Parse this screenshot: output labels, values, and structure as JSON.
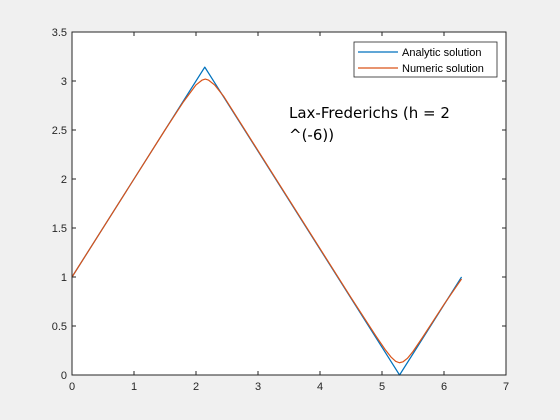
{
  "chart_data": {
    "type": "line",
    "title": "",
    "xlabel": "",
    "ylabel": "",
    "xlim": [
      0,
      7
    ],
    "ylim": [
      0,
      3.5
    ],
    "xticks": [
      0,
      1,
      2,
      3,
      4,
      5,
      6,
      7
    ],
    "yticks": [
      0,
      0.5,
      1,
      1.5,
      2,
      2.5,
      3,
      3.5
    ],
    "xtick_labels": [
      "0",
      "1",
      "2",
      "3",
      "4",
      "5",
      "6",
      "7"
    ],
    "ytick_labels": [
      "0",
      "0.5",
      "1",
      "1.5",
      "2",
      "2.5",
      "3",
      "3.5"
    ],
    "grid": false,
    "legend_position": "top-right",
    "series": [
      {
        "name": "Analytic solution",
        "color": "#0072BD",
        "x": [
          0,
          2.1416,
          5.2832,
          6.2832
        ],
        "y": [
          1,
          3.1416,
          0,
          1
        ]
      },
      {
        "name": "Numeric solution",
        "color": "#D95319",
        "x": [
          0,
          1.5,
          1.8,
          2.0,
          2.1,
          2.15,
          2.2,
          2.3,
          2.45,
          2.7,
          3.5,
          4.5,
          4.9,
          5.05,
          5.15,
          5.22,
          5.28,
          5.34,
          5.41,
          5.5,
          5.65,
          6.0,
          6.2832
        ],
        "y": [
          1,
          2.5,
          2.79,
          2.96,
          3.01,
          3.02,
          3.01,
          2.96,
          2.84,
          2.59,
          1.79,
          0.79,
          0.4,
          0.26,
          0.18,
          0.14,
          0.125,
          0.135,
          0.17,
          0.24,
          0.38,
          0.72,
          0.98
        ]
      }
    ],
    "annotations": [
      {
        "text_lines": [
          "Lax-Frederichs (h = 2",
          "^(-6))"
        ],
        "x": 3.5,
        "y": 2.62
      }
    ]
  }
}
